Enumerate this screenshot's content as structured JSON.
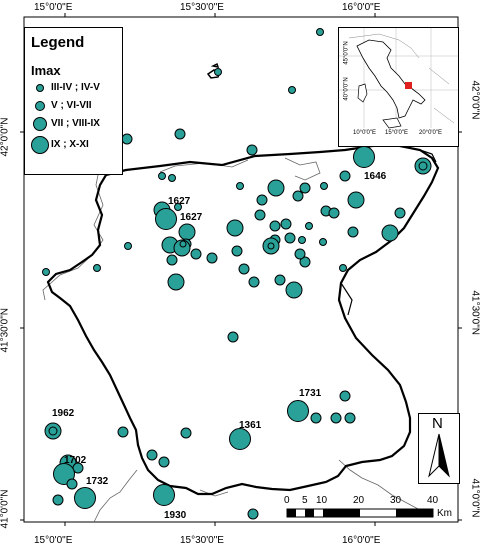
{
  "legend": {
    "title": "Legend",
    "subtitle": "Imax",
    "items": [
      {
        "label": "III-IV ; IV-V"
      },
      {
        "label": "V ; VI-VII"
      },
      {
        "label": "VII ; VIII-IX"
      },
      {
        "label": "IX ; X-XI"
      }
    ]
  },
  "coords": {
    "top": [
      "15°0'0\"E",
      "15°30'0\"E",
      "16°0'0\"E"
    ],
    "bottom": [
      "15°0'0\"E",
      "15°30'0\"E",
      "16°0'0\"E"
    ],
    "left": [
      "42°0'0\"N",
      "41°30'0\"N",
      "41°0'0\"N"
    ],
    "right": [
      "42°0'0\"N",
      "41°30'0\"N",
      "41°0'0\"N"
    ]
  },
  "inset": {
    "lat": [
      "45°0'0\"N",
      "40°0'0\"N"
    ],
    "lon": [
      "10°0'0\"E",
      "15°0'0\"E",
      "20°0'0\"E"
    ]
  },
  "event_labels": [
    "1627",
    "1627",
    "1646",
    "1962",
    "1702",
    "1732",
    "1930",
    "1361",
    "1731"
  ],
  "north": "N",
  "scale": {
    "ticks": [
      "0",
      "5",
      "10",
      "20",
      "30",
      "40"
    ],
    "unit": "Km"
  },
  "colors": {
    "symbol": "#2aa198",
    "border": "#000000",
    "inset_marker": "#e0201f"
  }
}
